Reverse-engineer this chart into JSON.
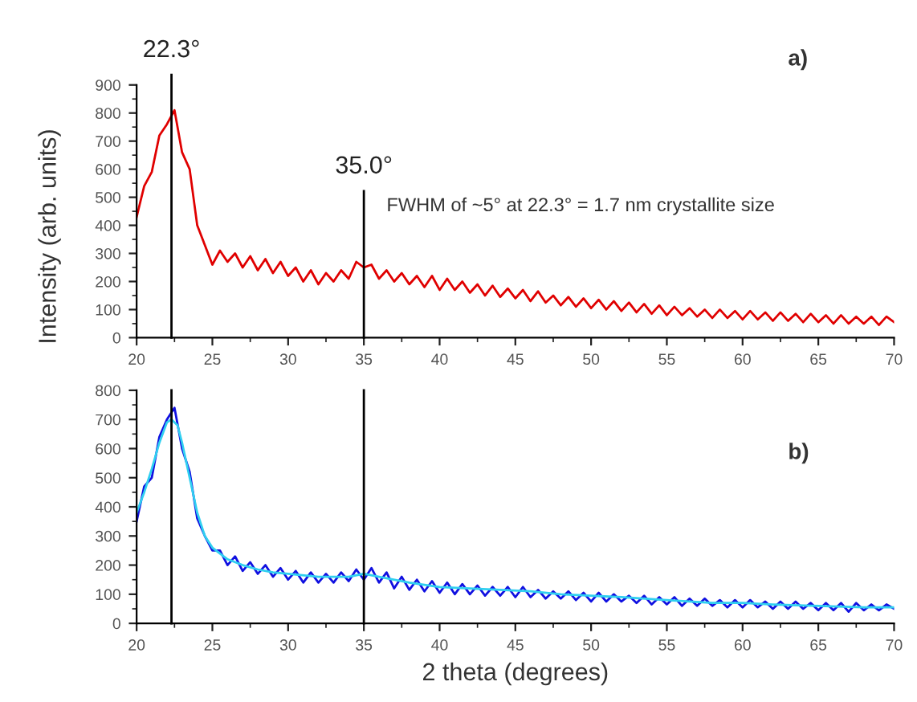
{
  "chart_data": [
    {
      "type": "line",
      "ylabel": "Intensity (arb. units)",
      "xlim": [
        20,
        70
      ],
      "xticks": [
        20,
        25,
        30,
        35,
        40,
        45,
        50,
        55,
        60,
        65,
        70
      ],
      "ylim": [
        0,
        900
      ],
      "yticks": [
        0,
        100,
        200,
        300,
        400,
        500,
        600,
        700,
        800,
        900
      ],
      "grid": false,
      "legend": false,
      "marker": "none",
      "line_style": "solid",
      "ref_lines": [
        {
          "axis": "x",
          "value": 22.3,
          "label": "22.3°",
          "color": "#000000"
        },
        {
          "axis": "x",
          "value": 35.0,
          "label": "35.0°",
          "color": "#000000"
        }
      ],
      "annotations": [
        "FWHM of ~5° at 22.3° = 1.7 nm crystallite size",
        "a)"
      ],
      "series": [
        {
          "color": "#e00000",
          "x": [
            20,
            20.5,
            21,
            21.5,
            22,
            22.5,
            23,
            23.5,
            24,
            24.5,
            25,
            25.5,
            26,
            26.5,
            27,
            27.5,
            28,
            28.5,
            29,
            29.5,
            30,
            30.5,
            31,
            31.5,
            32,
            32.5,
            33,
            33.5,
            34,
            34.5,
            35,
            35.5,
            36,
            36.5,
            37,
            37.5,
            38,
            38.5,
            39,
            39.5,
            40,
            40.5,
            41,
            41.5,
            42,
            42.5,
            43,
            43.5,
            44,
            44.5,
            45,
            45.5,
            46,
            46.5,
            47,
            47.5,
            48,
            48.5,
            49,
            49.5,
            50,
            50.5,
            51,
            51.5,
            52,
            52.5,
            53,
            53.5,
            54,
            54.5,
            55,
            55.5,
            56,
            56.5,
            57,
            57.5,
            58,
            58.5,
            59,
            59.5,
            60,
            60.5,
            61,
            61.5,
            62,
            62.5,
            63,
            63.5,
            64,
            64.5,
            65,
            65.5,
            66,
            66.5,
            67,
            67.5,
            68,
            68.5,
            69,
            69.5,
            70
          ],
          "values": [
            430,
            540,
            590,
            720,
            760,
            810,
            660,
            600,
            400,
            330,
            260,
            310,
            270,
            300,
            250,
            290,
            240,
            280,
            230,
            270,
            220,
            250,
            200,
            240,
            190,
            230,
            200,
            240,
            210,
            270,
            250,
            260,
            210,
            240,
            200,
            230,
            190,
            220,
            180,
            220,
            170,
            210,
            170,
            200,
            160,
            190,
            150,
            185,
            145,
            175,
            140,
            170,
            130,
            165,
            125,
            150,
            115,
            145,
            110,
            140,
            105,
            135,
            100,
            130,
            95,
            125,
            90,
            120,
            85,
            115,
            80,
            110,
            80,
            105,
            75,
            100,
            70,
            100,
            70,
            95,
            65,
            95,
            65,
            90,
            60,
            90,
            60,
            85,
            55,
            85,
            55,
            80,
            50,
            80,
            50,
            75,
            50,
            75,
            45,
            75,
            55
          ]
        }
      ]
    },
    {
      "type": "line",
      "xlabel": "2 theta (degrees)",
      "xlim": [
        20,
        70
      ],
      "xticks": [
        20,
        25,
        30,
        35,
        40,
        45,
        50,
        55,
        60,
        65,
        70
      ],
      "ylim": [
        0,
        800
      ],
      "yticks": [
        0,
        100,
        200,
        300,
        400,
        500,
        600,
        700,
        800
      ],
      "grid": false,
      "legend": false,
      "marker": "none",
      "line_style": "solid",
      "ref_lines": [
        {
          "axis": "x",
          "value": 22.3,
          "color": "#000000"
        },
        {
          "axis": "x",
          "value": 35.0,
          "color": "#000000"
        }
      ],
      "annotations": [
        "b)"
      ],
      "series": [
        {
          "color": "#1010e0",
          "x": [
            20,
            20.5,
            21,
            21.5,
            22,
            22.5,
            23,
            23.5,
            24,
            24.5,
            25,
            25.5,
            26,
            26.5,
            27,
            27.5,
            28,
            28.5,
            29,
            29.5,
            30,
            30.5,
            31,
            31.5,
            32,
            32.5,
            33,
            33.5,
            34,
            34.5,
            35,
            35.5,
            36,
            36.5,
            37,
            37.5,
            38,
            38.5,
            39,
            39.5,
            40,
            40.5,
            41,
            41.5,
            42,
            42.5,
            43,
            43.5,
            44,
            44.5,
            45,
            45.5,
            46,
            46.5,
            47,
            47.5,
            48,
            48.5,
            49,
            49.5,
            50,
            50.5,
            51,
            51.5,
            52,
            52.5,
            53,
            53.5,
            54,
            54.5,
            55,
            55.5,
            56,
            56.5,
            57,
            57.5,
            58,
            58.5,
            59,
            59.5,
            60,
            60.5,
            61,
            61.5,
            62,
            62.5,
            63,
            63.5,
            64,
            64.5,
            65,
            65.5,
            66,
            66.5,
            67,
            67.5,
            68,
            68.5,
            69,
            69.5,
            70
          ],
          "values": [
            350,
            470,
            500,
            640,
            700,
            740,
            600,
            520,
            360,
            300,
            250,
            250,
            200,
            230,
            180,
            210,
            170,
            200,
            160,
            190,
            150,
            180,
            140,
            175,
            140,
            170,
            140,
            175,
            145,
            185,
            150,
            190,
            140,
            175,
            120,
            160,
            115,
            150,
            110,
            145,
            105,
            140,
            100,
            135,
            100,
            130,
            95,
            125,
            95,
            125,
            90,
            125,
            90,
            115,
            85,
            110,
            85,
            110,
            80,
            105,
            75,
            105,
            75,
            100,
            75,
            95,
            70,
            95,
            65,
            90,
            65,
            90,
            60,
            85,
            60,
            85,
            60,
            80,
            55,
            80,
            55,
            80,
            55,
            75,
            50,
            75,
            50,
            75,
            50,
            70,
            45,
            70,
            45,
            70,
            40,
            70,
            45,
            65,
            45,
            65,
            50
          ]
        },
        {
          "color": "#30d0f0",
          "x": [
            20,
            20.5,
            21,
            21.5,
            22,
            22.3,
            22.7,
            23,
            23.5,
            24,
            24.5,
            25,
            26,
            27,
            28,
            29,
            30,
            32,
            34,
            35,
            36,
            38,
            40,
            42,
            44,
            46,
            48,
            50,
            52,
            55,
            58,
            60,
            62,
            65,
            68,
            70
          ],
          "values": [
            380,
            450,
            530,
            620,
            690,
            700,
            680,
            620,
            500,
            380,
            300,
            260,
            220,
            200,
            185,
            175,
            170,
            160,
            160,
            170,
            160,
            140,
            125,
            120,
            115,
            110,
            100,
            95,
            90,
            80,
            70,
            70,
            65,
            60,
            55,
            55
          ]
        }
      ]
    }
  ]
}
